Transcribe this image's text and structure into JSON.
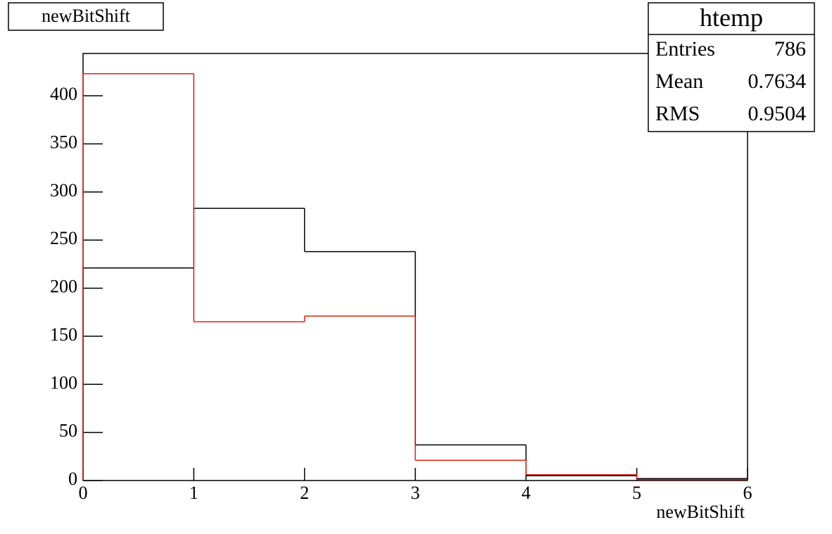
{
  "chart_data": {
    "type": "histogram",
    "title": "newBitShift",
    "x_label": "newBitShift",
    "bins": [
      0,
      1,
      2,
      3,
      4,
      5,
      6
    ],
    "series": [
      {
        "color": "#000000",
        "values": [
          221,
          283,
          238,
          37,
          5,
          2
        ]
      },
      {
        "color": "#e0200f",
        "values": [
          423,
          165,
          171,
          21,
          6,
          1
        ]
      }
    ],
    "xlim": [
      0,
      6
    ],
    "xticks": [
      0,
      1,
      2,
      3,
      4,
      5,
      6
    ],
    "ylim": [
      0,
      444
    ],
    "yticks": [
      0,
      50,
      100,
      150,
      200,
      250,
      300,
      350,
      400
    ],
    "stats": {
      "title": "htemp",
      "rows": [
        {
          "label": "Entries",
          "value": 786
        },
        {
          "label": "Mean",
          "value": 0.7634
        },
        {
          "label": "RMS",
          "value": 0.9504
        }
      ]
    }
  }
}
